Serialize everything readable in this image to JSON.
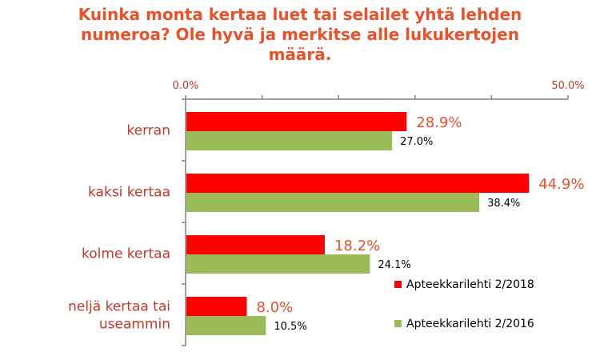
{
  "chart_data": {
    "type": "bar",
    "orientation": "horizontal",
    "title": "Kuinka monta kertaa luet tai selailet yhtä lehden numeroa? Ole hyvä ja merkitse alle lukukertojen määrä.",
    "categories": [
      "kerran",
      "kaksi kertaa",
      "kolme kertaa",
      "neljä kertaa tai useammin"
    ],
    "series": [
      {
        "name": "Apteekkarilehti 2/2018",
        "color": "#ff0000",
        "values": [
          28.9,
          44.9,
          18.2,
          8.0
        ],
        "labels": [
          "28.9%",
          "44.9%",
          "18.2%",
          "8.0%"
        ]
      },
      {
        "name": "Apteekkarilehti 2/2016",
        "color": "#9bbb59",
        "values": [
          27.0,
          38.4,
          24.1,
          10.5
        ],
        "labels": [
          "27.0%",
          "38.4%",
          "24.1%",
          "10.5%"
        ]
      }
    ],
    "xlim": [
      0,
      50
    ],
    "ticks": [
      {
        "value": 0,
        "label": "0.0%"
      },
      {
        "value": 50,
        "label": "50.0%"
      }
    ],
    "tick_position": "top",
    "grid": false,
    "legend": "bottom-right",
    "xlabel": "",
    "ylabel": ""
  }
}
